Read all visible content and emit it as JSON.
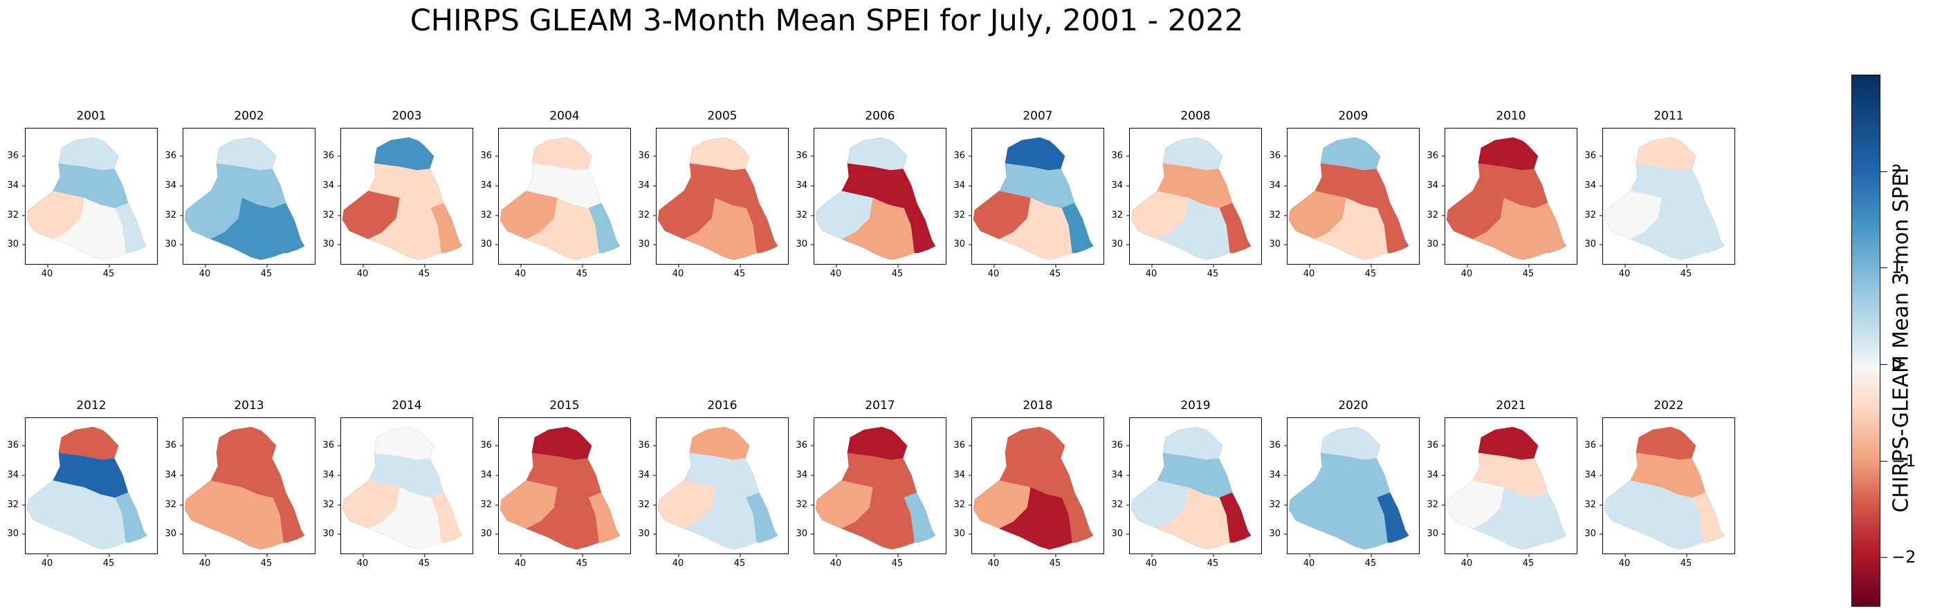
{
  "title": "CHIRPS GLEAM 3-Month Mean SPEI for July, 2001 - 2022",
  "x_ticks": [
    "40",
    "45"
  ],
  "y_ticks": [
    "36",
    "34",
    "32",
    "30"
  ],
  "colorbar": {
    "label": "CHIRPS-GLEAM Mean 3-mon SPEI",
    "ticks": [
      "2",
      "1",
      "0",
      "−1",
      "−2"
    ],
    "tick_values": [
      2,
      1,
      0,
      -1,
      -2
    ],
    "range": [
      -2.5,
      3.0
    ],
    "colormap": "RdBu"
  },
  "panels": [
    {
      "year": "2001",
      "n": "#d1e5f0",
      "c": "#92c5de",
      "w": "#fddbc7",
      "s": "#f7f7f7",
      "se": "#d1e5f0"
    },
    {
      "year": "2002",
      "n": "#d1e5f0",
      "c": "#92c5de",
      "w": "#92c5de",
      "s": "#4393c3",
      "se": "#4393c3"
    },
    {
      "year": "2003",
      "n": "#4393c3",
      "c": "#fddbc7",
      "w": "#d6604d",
      "s": "#fddbc7",
      "se": "#f4a582"
    },
    {
      "year": "2004",
      "n": "#fddbc7",
      "c": "#f7f7f7",
      "w": "#f4a582",
      "s": "#fddbc7",
      "se": "#92c5de"
    },
    {
      "year": "2005",
      "n": "#fddbc7",
      "c": "#d6604d",
      "w": "#d6604d",
      "s": "#f4a582",
      "se": "#d6604d"
    },
    {
      "year": "2006",
      "n": "#d1e5f0",
      "c": "#b2182b",
      "w": "#d1e5f0",
      "s": "#f4a582",
      "se": "#b2182b"
    },
    {
      "year": "2007",
      "n": "#2166ac",
      "c": "#92c5de",
      "w": "#d6604d",
      "s": "#fddbc7",
      "se": "#4393c3"
    },
    {
      "year": "2008",
      "n": "#d1e5f0",
      "c": "#f4a582",
      "w": "#fddbc7",
      "s": "#d1e5f0",
      "se": "#d6604d"
    },
    {
      "year": "2009",
      "n": "#92c5de",
      "c": "#d6604d",
      "w": "#f4a582",
      "s": "#fddbc7",
      "se": "#d6604d"
    },
    {
      "year": "2010",
      "n": "#b2182b",
      "c": "#d6604d",
      "w": "#d6604d",
      "s": "#f4a582",
      "se": "#f4a582"
    },
    {
      "year": "2011",
      "n": "#fddbc7",
      "c": "#d1e5f0",
      "w": "#f7f7f7",
      "s": "#d1e5f0",
      "se": "#d1e5f0"
    },
    {
      "year": "2012",
      "n": "#d6604d",
      "c": "#2166ac",
      "w": "#d1e5f0",
      "s": "#d1e5f0",
      "se": "#92c5de"
    },
    {
      "year": "2013",
      "n": "#d6604d",
      "c": "#d6604d",
      "w": "#f4a582",
      "s": "#f4a582",
      "se": "#d6604d"
    },
    {
      "year": "2014",
      "n": "#f7f7f7",
      "c": "#d1e5f0",
      "w": "#fddbc7",
      "s": "#f7f7f7",
      "se": "#fddbc7"
    },
    {
      "year": "2015",
      "n": "#b2182b",
      "c": "#d6604d",
      "w": "#f4a582",
      "s": "#d6604d",
      "se": "#f4a582"
    },
    {
      "year": "2016",
      "n": "#f4a582",
      "c": "#d1e5f0",
      "w": "#fddbc7",
      "s": "#d1e5f0",
      "se": "#92c5de"
    },
    {
      "year": "2017",
      "n": "#b2182b",
      "c": "#d6604d",
      "w": "#f4a582",
      "s": "#d6604d",
      "se": "#92c5de"
    },
    {
      "year": "2018",
      "n": "#d6604d",
      "c": "#d6604d",
      "w": "#f4a582",
      "s": "#b2182b",
      "se": "#d6604d"
    },
    {
      "year": "2019",
      "n": "#d1e5f0",
      "c": "#92c5de",
      "w": "#d1e5f0",
      "s": "#fddbc7",
      "se": "#b2182b"
    },
    {
      "year": "2020",
      "n": "#d1e5f0",
      "c": "#92c5de",
      "w": "#92c5de",
      "s": "#92c5de",
      "se": "#2166ac"
    },
    {
      "year": "2021",
      "n": "#b2182b",
      "c": "#fddbc7",
      "w": "#f7f7f7",
      "s": "#d1e5f0",
      "se": "#d1e5f0"
    },
    {
      "year": "2022",
      "n": "#d6604d",
      "c": "#f4a582",
      "w": "#d1e5f0",
      "s": "#d1e5f0",
      "se": "#fddbc7"
    }
  ]
}
